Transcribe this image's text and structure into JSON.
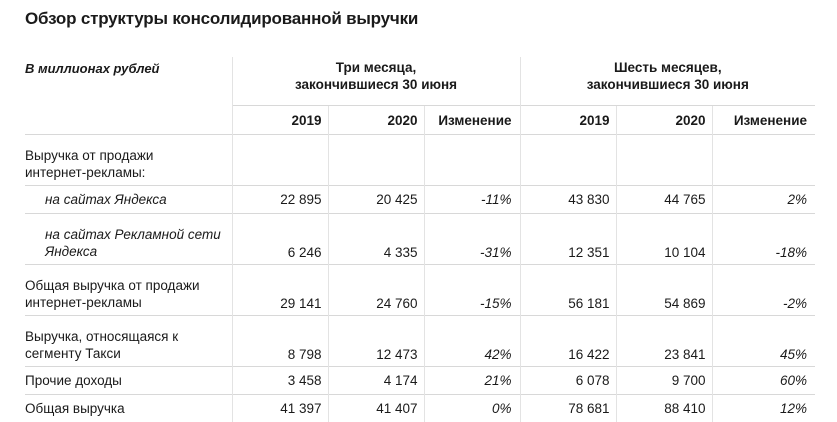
{
  "title": "Обзор структуры консолидированной выручки",
  "units_label": "В миллионах рублей",
  "groups": [
    {
      "label_line1": "Три месяца,",
      "label_line2": "закончившиеся 30 июня"
    },
    {
      "label_line1": "Шесть месяцев,",
      "label_line2": "закончившиеся 30 июня"
    }
  ],
  "columns": [
    "2019",
    "2020",
    "Изменение",
    "2019",
    "2020",
    "Изменение"
  ],
  "rows": [
    {
      "label_line1": "Выручка от продажи",
      "label_line2": "интернет-рекламы:",
      "values": [
        "",
        "",
        "",
        "",
        "",
        ""
      ]
    },
    {
      "label_line1": "на сайтах Яндекса",
      "label_line2": "",
      "values": [
        "22 895",
        "20 425",
        "-11%",
        "43 830",
        "44 765",
        "2%"
      ]
    },
    {
      "label_line1": "на сайтах Рекламной сети",
      "label_line2": "Яндекса",
      "values": [
        "6 246",
        "4 335",
        "-31%",
        "12 351",
        "10 104",
        "-18%"
      ]
    },
    {
      "label_line1": "Общая выручка от продажи",
      "label_line2": "интернет-рекламы",
      "values": [
        "29 141",
        "24 760",
        "-15%",
        "56 181",
        "54 869",
        "-2%"
      ]
    },
    {
      "label_line1": "Выручка, относящаяся к",
      "label_line2": "сегменту Такси",
      "values": [
        "8 798",
        "12 473",
        "42%",
        "16 422",
        "23 841",
        "45%"
      ]
    },
    {
      "label_line1": "Прочие доходы",
      "label_line2": "",
      "values": [
        "3 458",
        "4 174",
        "21%",
        "6 078",
        "9 700",
        "60%"
      ]
    },
    {
      "label_line1": "Общая выручка",
      "label_line2": "",
      "values": [
        "41 397",
        "41 407",
        "0%",
        "78 681",
        "88 410",
        "12%"
      ]
    }
  ]
}
